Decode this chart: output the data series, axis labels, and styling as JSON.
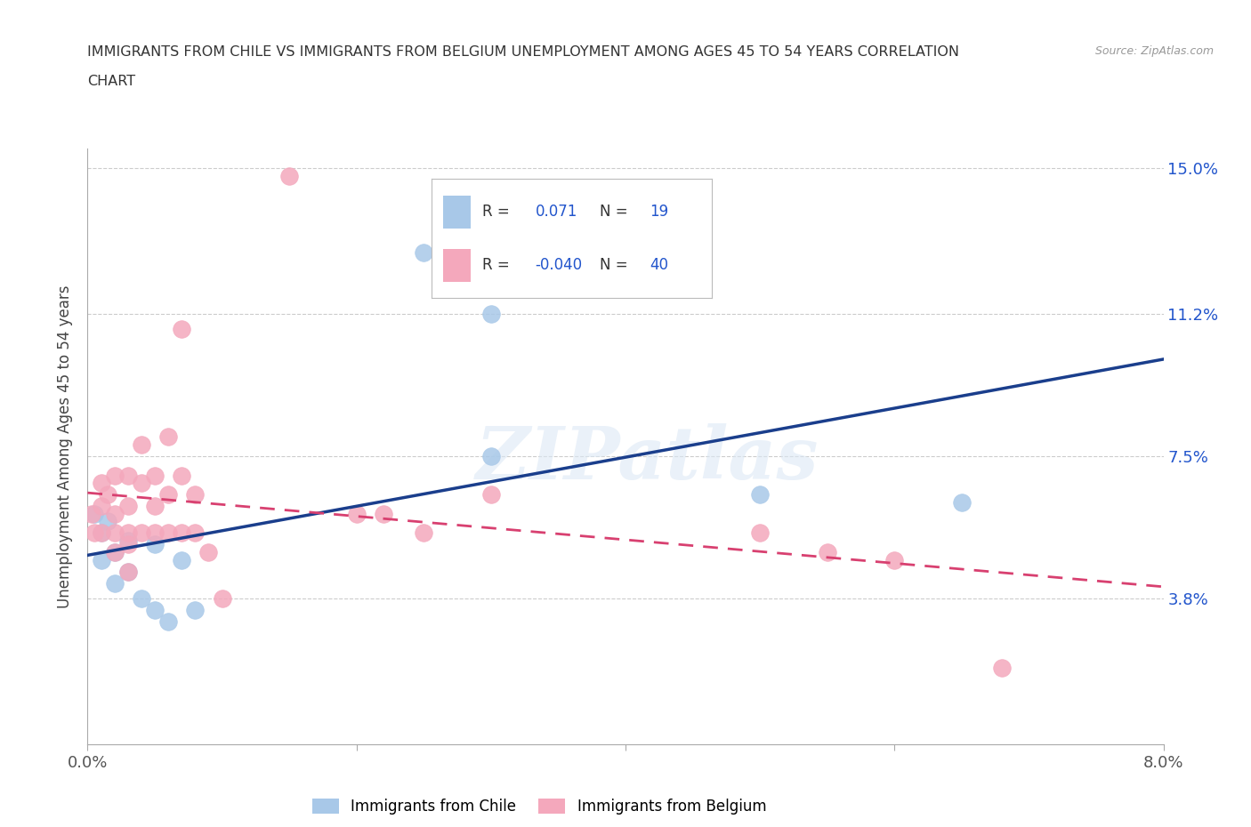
{
  "title_line1": "IMMIGRANTS FROM CHILE VS IMMIGRANTS FROM BELGIUM UNEMPLOYMENT AMONG AGES 45 TO 54 YEARS CORRELATION",
  "title_line2": "CHART",
  "source": "Source: ZipAtlas.com",
  "ylabel": "Unemployment Among Ages 45 to 54 years",
  "xlabel_chile": "Immigrants from Chile",
  "xlabel_belgium": "Immigrants from Belgium",
  "xlim": [
    0.0,
    0.08
  ],
  "ylim": [
    0.0,
    0.155
  ],
  "ytick_vals": [
    0.0,
    0.038,
    0.075,
    0.112,
    0.15
  ],
  "ytick_labels": [
    "",
    "3.8%",
    "7.5%",
    "11.2%",
    "15.0%"
  ],
  "xtick_vals": [
    0.0,
    0.02,
    0.04,
    0.06,
    0.08
  ],
  "xtick_labels": [
    "0.0%",
    "",
    "",
    "",
    "8.0%"
  ],
  "R_chile": 0.071,
  "N_chile": 19,
  "R_belgium": -0.04,
  "N_belgium": 40,
  "color_chile": "#a8c8e8",
  "color_belgium": "#f4a8bc",
  "line_color_chile": "#1a3e8c",
  "line_color_belgium": "#d84070",
  "watermark": "ZIPatlas",
  "chile_x": [
    0.0005,
    0.001,
    0.001,
    0.0015,
    0.002,
    0.002,
    0.003,
    0.003,
    0.004,
    0.005,
    0.005,
    0.006,
    0.007,
    0.008,
    0.025,
    0.03,
    0.03,
    0.05,
    0.065
  ],
  "chile_y": [
    0.06,
    0.055,
    0.048,
    0.058,
    0.05,
    0.042,
    0.053,
    0.045,
    0.038,
    0.035,
    0.052,
    0.032,
    0.048,
    0.035,
    0.128,
    0.112,
    0.075,
    0.065,
    0.063
  ],
  "belgium_x": [
    0.0003,
    0.0005,
    0.001,
    0.001,
    0.001,
    0.0015,
    0.002,
    0.002,
    0.002,
    0.002,
    0.003,
    0.003,
    0.003,
    0.003,
    0.003,
    0.004,
    0.004,
    0.004,
    0.005,
    0.005,
    0.005,
    0.006,
    0.006,
    0.006,
    0.007,
    0.007,
    0.007,
    0.008,
    0.008,
    0.009,
    0.01,
    0.015,
    0.02,
    0.022,
    0.025,
    0.03,
    0.05,
    0.055,
    0.06,
    0.068
  ],
  "belgium_y": [
    0.06,
    0.055,
    0.068,
    0.062,
    0.055,
    0.065,
    0.07,
    0.06,
    0.055,
    0.05,
    0.07,
    0.062,
    0.055,
    0.052,
    0.045,
    0.078,
    0.068,
    0.055,
    0.07,
    0.062,
    0.055,
    0.08,
    0.065,
    0.055,
    0.108,
    0.07,
    0.055,
    0.065,
    0.055,
    0.05,
    0.038,
    0.148,
    0.06,
    0.06,
    0.055,
    0.065,
    0.055,
    0.05,
    0.048,
    0.02
  ]
}
